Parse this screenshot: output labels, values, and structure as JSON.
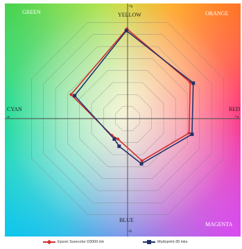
{
  "chart_data": {
    "type": "radar",
    "title": "",
    "axis_labels": {
      "top": "+b",
      "bottom": "-b",
      "left": "-a",
      "right": "+a"
    },
    "corner_labels": {
      "top_left": "GREEN",
      "top_right": "ORANGE",
      "bottom_right": "MAGENTA"
    },
    "direction_labels": {
      "top": "YELLOW",
      "left": "CYAN",
      "right": "RED",
      "bottom": "BLUE"
    },
    "grid": true,
    "grid_levels": 8,
    "series": [
      {
        "name": "Epson Surecolor D3000 ink",
        "color": "#d42d2d",
        "marker": "diamond",
        "points": [
          [
            -0.5,
            74.5
          ],
          [
            52,
            30
          ],
          [
            51,
            -12
          ],
          [
            12,
            -35
          ],
          [
            -8,
            -17
          ],
          [
            -13,
            -14
          ],
          [
            -47,
            20
          ]
        ]
      },
      {
        "name": "Mydoprint-39 inks",
        "color": "#23316a",
        "marker": "square",
        "points": [
          [
            -1,
            73
          ],
          [
            54.5,
            29.5
          ],
          [
            53.5,
            -13
          ],
          [
            11.5,
            -37.5
          ],
          [
            -7,
            -23
          ],
          [
            -11,
            -17
          ],
          [
            -44,
            19
          ]
        ]
      }
    ],
    "axis_range": [
      -95,
      95
    ]
  }
}
